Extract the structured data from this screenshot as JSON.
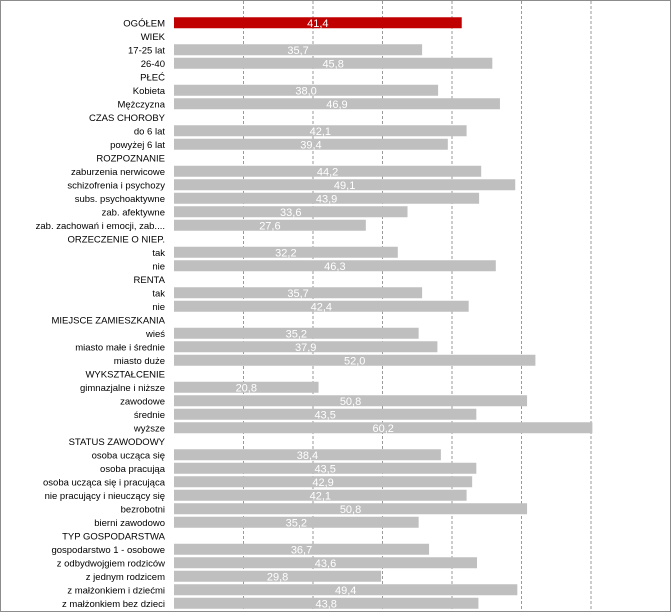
{
  "chart_data": {
    "type": "bar",
    "orientation": "horizontal",
    "xlim": [
      0,
      60
    ],
    "grid": "vertical dashed",
    "highlight_color": "#c00000",
    "bar_color": "#bfbfbf",
    "rows": [
      {
        "label": "OGÓŁEM",
        "value": 41.4,
        "display": "41,4",
        "highlight": true
      },
      {
        "label": "WIEK",
        "value": null,
        "display": ""
      },
      {
        "label": "17-25 lat",
        "value": 35.7,
        "display": "35,7"
      },
      {
        "label": "26-40",
        "value": 45.8,
        "display": "45,8"
      },
      {
        "label": "PŁEĆ",
        "value": null,
        "display": ""
      },
      {
        "label": "Kobieta",
        "value": 38.0,
        "display": "38,0"
      },
      {
        "label": "Mężczyzna",
        "value": 46.9,
        "display": "46,9"
      },
      {
        "label": "CZAS CHOROBY",
        "value": null,
        "display": ""
      },
      {
        "label": "do 6 lat",
        "value": 42.1,
        "display": "42,1"
      },
      {
        "label": "powyżej 6 lat",
        "value": 39.4,
        "display": "39,4"
      },
      {
        "label": "ROZPOZNANIE",
        "value": null,
        "display": ""
      },
      {
        "label": "zaburzenia nerwicowe",
        "value": 44.2,
        "display": "44,2"
      },
      {
        "label": "schizofrenia i psychozy",
        "value": 49.1,
        "display": "49,1"
      },
      {
        "label": "subs. psychoaktywne",
        "value": 43.9,
        "display": "43,9"
      },
      {
        "label": "zab. afektywne",
        "value": 33.6,
        "display": "33,6"
      },
      {
        "label": "zab. zachowań i emocji, zab....",
        "value": 27.6,
        "display": "27,6"
      },
      {
        "label": "ORZECZENIE O NIEP.",
        "value": null,
        "display": ""
      },
      {
        "label": "tak",
        "value": 32.2,
        "display": "32,2"
      },
      {
        "label": "nie",
        "value": 46.3,
        "display": "46,3"
      },
      {
        "label": "RENTA",
        "value": null,
        "display": ""
      },
      {
        "label": "tak",
        "value": 35.7,
        "display": "35,7"
      },
      {
        "label": "nie",
        "value": 42.4,
        "display": "42,4"
      },
      {
        "label": "MIEJSCE ZAMIESZKANIA",
        "value": null,
        "display": ""
      },
      {
        "label": "wieś",
        "value": 35.2,
        "display": "35,2"
      },
      {
        "label": "miasto małe i średnie",
        "value": 37.9,
        "display": "37,9"
      },
      {
        "label": "miasto duże",
        "value": 52.0,
        "display": "52,0"
      },
      {
        "label": "WYKSZTAŁCENIE",
        "value": null,
        "display": ""
      },
      {
        "label": "gimnazjalne i niższe",
        "value": 20.8,
        "display": "20,8"
      },
      {
        "label": "zawodowe",
        "value": 50.8,
        "display": "50,8"
      },
      {
        "label": "średnie",
        "value": 43.5,
        "display": "43,5"
      },
      {
        "label": "wyższe",
        "value": 60.2,
        "display": "60,2"
      },
      {
        "label": "STATUS ZAWODOWY",
        "value": null,
        "display": ""
      },
      {
        "label": "osoba ucząca się",
        "value": 38.4,
        "display": "38,4"
      },
      {
        "label": "osoba pracująa",
        "value": 43.5,
        "display": "43,5"
      },
      {
        "label": "osoba ucząca się i pracująca",
        "value": 42.9,
        "display": "42,9"
      },
      {
        "label": "nie pracujący i nieuczący się",
        "value": 42.1,
        "display": "42,1"
      },
      {
        "label": "bezrobotni",
        "value": 50.8,
        "display": "50,8"
      },
      {
        "label": "bierni zawodowo",
        "value": 35.2,
        "display": "35,2"
      },
      {
        "label": "TYP GOSPODARSTWA",
        "value": null,
        "display": ""
      },
      {
        "label": "gospodarstwo 1 - osobowe",
        "value": 36.7,
        "display": "36,7"
      },
      {
        "label": "z odbydwojgiem rodziców",
        "value": 43.6,
        "display": "43,6"
      },
      {
        "label": "z jednym rodzicem",
        "value": 29.8,
        "display": "29,8"
      },
      {
        "label": "z małżonkiem i dziećmi",
        "value": 49.4,
        "display": "49,4"
      },
      {
        "label": "z małżonkiem bez dzieci",
        "value": 43.8,
        "display": "43,8"
      }
    ]
  }
}
